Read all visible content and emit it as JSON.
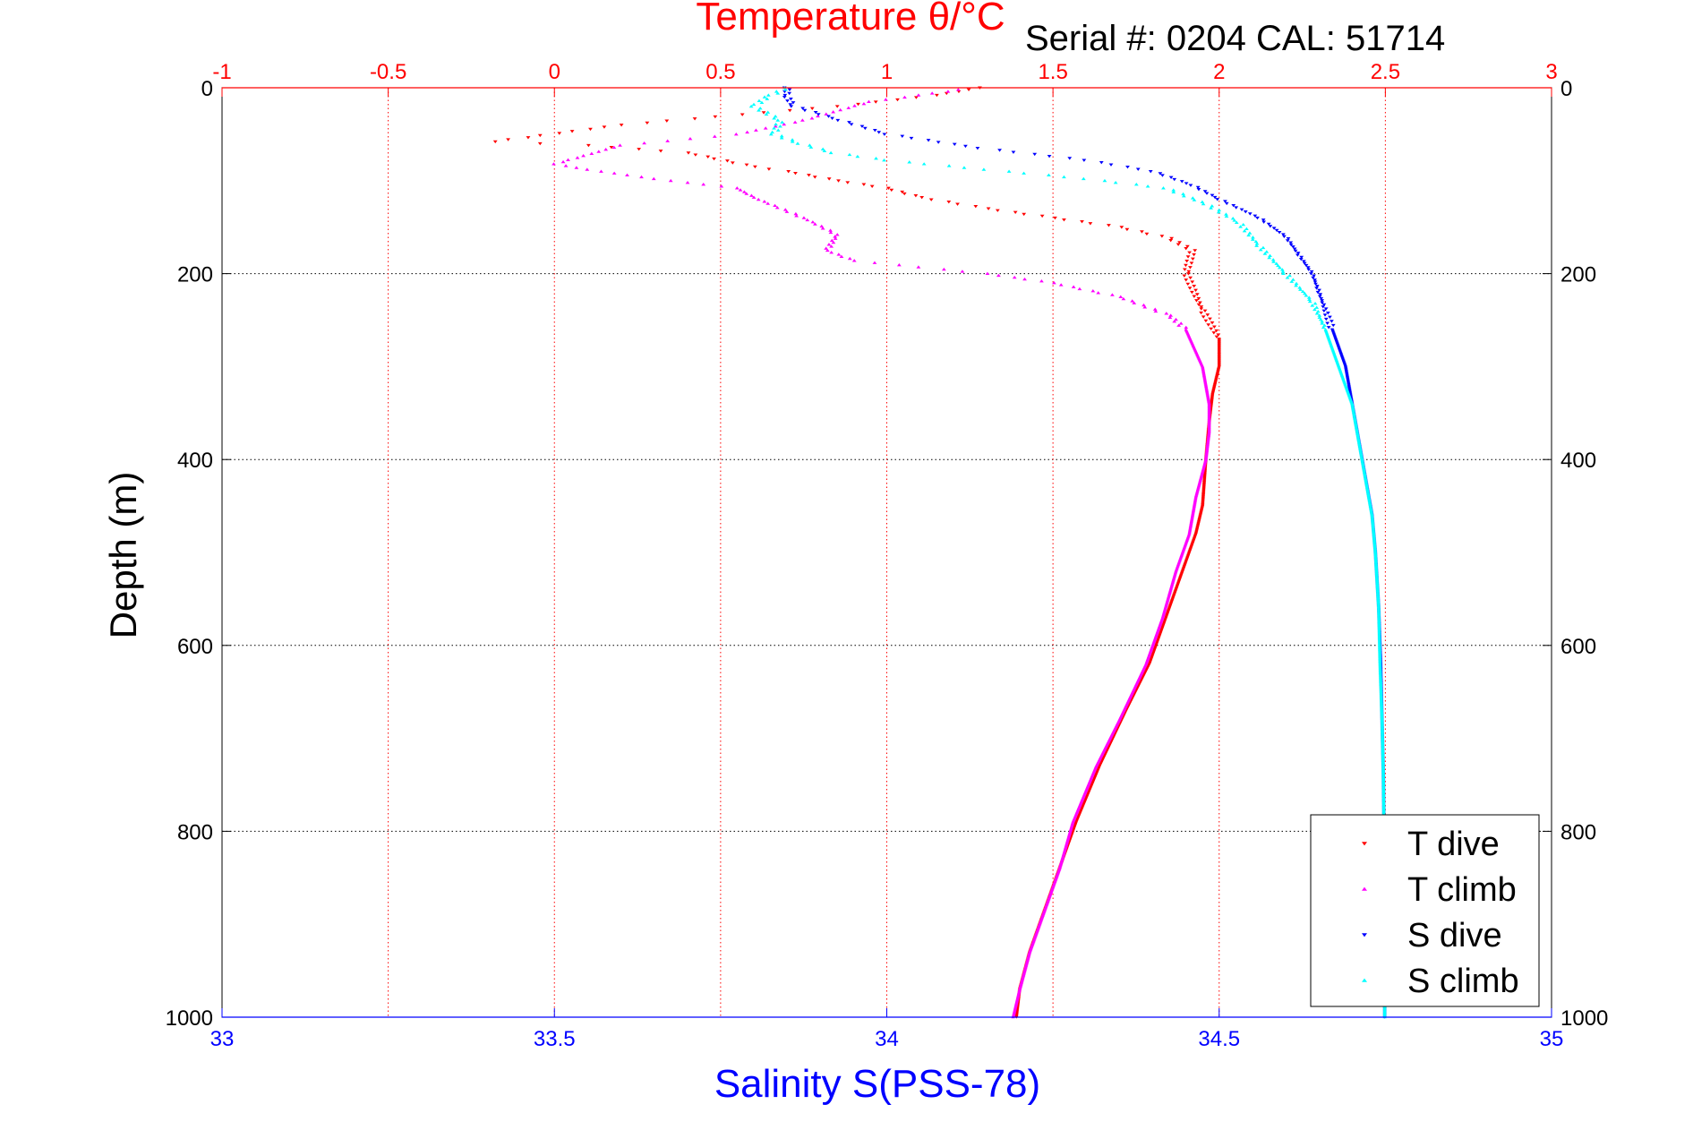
{
  "chart_data": {
    "type": "scatter",
    "title": "Temperature θ/°C",
    "subtitle": "Serial #: 0204   CAL: 51714",
    "ylabel": "Depth (m)",
    "xlabel": "Salinity S(PSS-78)",
    "ylim": [
      0,
      1000
    ],
    "y_inverted": true,
    "y_ticks": [
      0,
      200,
      400,
      600,
      800,
      1000
    ],
    "top_axis": {
      "label": "Temperature θ/°C",
      "range": [
        -1,
        3
      ],
      "ticks": [
        -1,
        -0.5,
        0,
        0.5,
        1,
        1.5,
        2,
        2.5,
        3
      ],
      "tick_labels": [
        "-1",
        "-0.5",
        "0",
        "0.5",
        "1",
        "1.5",
        "2",
        "2.5",
        "3"
      ],
      "color": "#ff0000"
    },
    "bottom_axis": {
      "label": "Salinity S(PSS-78)",
      "range": [
        33,
        35
      ],
      "ticks": [
        33,
        33.5,
        34,
        34.5,
        35
      ],
      "tick_labels": [
        "33",
        "33.5",
        "34",
        "34.5",
        "35"
      ],
      "color": "#0000ff"
    },
    "grid": true,
    "legend_position": "bottom-right",
    "series": [
      {
        "name": "T dive",
        "axis": "temperature",
        "color": "#ff0000",
        "marker": "triangle-down",
        "points": [
          [
            1.28,
            0
          ],
          [
            1.15,
            8
          ],
          [
            0.85,
            20
          ],
          [
            0.2,
            40
          ],
          [
            -0.18,
            58
          ],
          [
            0.1,
            62
          ],
          [
            0.4,
            70
          ],
          [
            0.6,
            85
          ],
          [
            0.7,
            90
          ],
          [
            0.85,
            100
          ],
          [
            1.0,
            108
          ],
          [
            1.1,
            118
          ],
          [
            1.3,
            130
          ],
          [
            1.5,
            140
          ],
          [
            1.7,
            150
          ],
          [
            1.85,
            162
          ],
          [
            1.92,
            175
          ],
          [
            1.9,
            200
          ],
          [
            1.95,
            240
          ],
          [
            2.0,
            270
          ],
          [
            2.0,
            300
          ],
          [
            1.98,
            330
          ],
          [
            1.97,
            360
          ],
          [
            1.96,
            400
          ],
          [
            1.95,
            450
          ],
          [
            1.93,
            480
          ],
          [
            1.89,
            520
          ],
          [
            1.84,
            570
          ],
          [
            1.79,
            620
          ],
          [
            1.72,
            670
          ],
          [
            1.64,
            730
          ],
          [
            1.57,
            790
          ],
          [
            1.53,
            830
          ],
          [
            1.48,
            880
          ],
          [
            1.43,
            930
          ],
          [
            1.4,
            970
          ],
          [
            1.39,
            1000
          ]
        ]
      },
      {
        "name": "T climb",
        "axis": "temperature",
        "color": "#ff00ff",
        "marker": "triangle-up",
        "points": [
          [
            1.22,
            2
          ],
          [
            1.1,
            8
          ],
          [
            0.95,
            15
          ],
          [
            0.75,
            35
          ],
          [
            0.55,
            50
          ],
          [
            0.2,
            62
          ],
          [
            0.0,
            82
          ],
          [
            0.1,
            88
          ],
          [
            0.3,
            98
          ],
          [
            0.55,
            108
          ],
          [
            0.6,
            118
          ],
          [
            0.75,
            140
          ],
          [
            0.85,
            158
          ],
          [
            0.82,
            175
          ],
          [
            0.9,
            186
          ],
          [
            1.3,
            200
          ],
          [
            1.5,
            210
          ],
          [
            1.7,
            225
          ],
          [
            1.85,
            245
          ],
          [
            1.9,
            260
          ],
          [
            1.95,
            300
          ],
          [
            1.97,
            340
          ],
          [
            1.97,
            370
          ],
          [
            1.96,
            400
          ],
          [
            1.93,
            440
          ],
          [
            1.91,
            480
          ],
          [
            1.87,
            520
          ],
          [
            1.83,
            570
          ],
          [
            1.78,
            620
          ],
          [
            1.7,
            680
          ],
          [
            1.63,
            730
          ],
          [
            1.56,
            790
          ],
          [
            1.52,
            840
          ],
          [
            1.47,
            890
          ],
          [
            1.43,
            930
          ],
          [
            1.4,
            970
          ],
          [
            1.38,
            1000
          ]
        ]
      },
      {
        "name": "S dive",
        "axis": "salinity",
        "color": "#0000ff",
        "marker": "triangle-down",
        "points": [
          [
            33.85,
            0
          ],
          [
            33.85,
            10
          ],
          [
            33.86,
            20
          ],
          [
            33.93,
            35
          ],
          [
            34.0,
            50
          ],
          [
            34.14,
            65
          ],
          [
            34.3,
            78
          ],
          [
            34.4,
            90
          ],
          [
            34.46,
            105
          ],
          [
            34.5,
            120
          ],
          [
            34.56,
            140
          ],
          [
            34.6,
            160
          ],
          [
            34.62,
            180
          ],
          [
            34.64,
            200
          ],
          [
            34.65,
            220
          ],
          [
            34.67,
            260
          ],
          [
            34.69,
            300
          ],
          [
            34.7,
            340
          ],
          [
            34.71,
            380
          ],
          [
            34.72,
            420
          ],
          [
            34.73,
            460
          ],
          [
            34.735,
            500
          ],
          [
            34.74,
            560
          ],
          [
            34.743,
            620
          ],
          [
            34.745,
            680
          ],
          [
            34.747,
            740
          ],
          [
            34.748,
            800
          ],
          [
            34.748,
            860
          ],
          [
            34.748,
            920
          ],
          [
            34.749,
            980
          ],
          [
            34.749,
            1000
          ]
        ]
      },
      {
        "name": "S climb",
        "axis": "salinity",
        "color": "#00ffff",
        "marker": "triangle-up",
        "points": [
          [
            33.85,
            0
          ],
          [
            33.82,
            10
          ],
          [
            33.8,
            20
          ],
          [
            33.84,
            35
          ],
          [
            33.83,
            50
          ],
          [
            33.87,
            60
          ],
          [
            33.92,
            70
          ],
          [
            34.0,
            78
          ],
          [
            34.15,
            88
          ],
          [
            34.3,
            98
          ],
          [
            34.42,
            108
          ],
          [
            34.48,
            125
          ],
          [
            34.53,
            145
          ],
          [
            34.56,
            170
          ],
          [
            34.6,
            200
          ],
          [
            34.64,
            230
          ],
          [
            34.66,
            260
          ],
          [
            34.68,
            300
          ],
          [
            34.7,
            340
          ],
          [
            34.71,
            380
          ],
          [
            34.72,
            420
          ],
          [
            34.73,
            460
          ],
          [
            34.735,
            500
          ],
          [
            34.74,
            560
          ],
          [
            34.742,
            620
          ],
          [
            34.745,
            680
          ],
          [
            34.747,
            740
          ],
          [
            34.748,
            800
          ],
          [
            34.748,
            860
          ],
          [
            34.748,
            920
          ],
          [
            34.749,
            980
          ],
          [
            34.749,
            1000
          ]
        ]
      }
    ]
  }
}
